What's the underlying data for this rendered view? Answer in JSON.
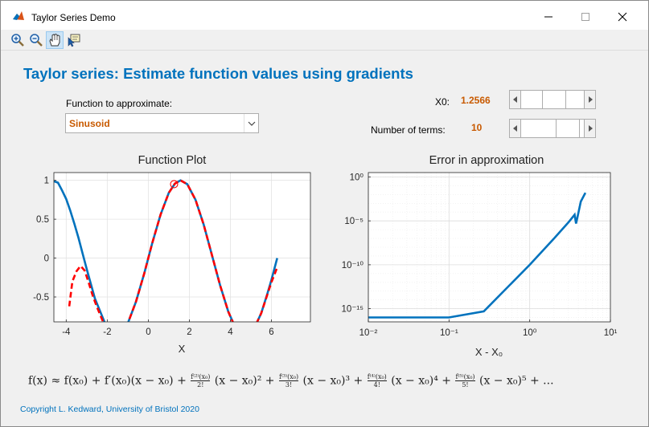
{
  "window": {
    "title": "Taylor Series Demo"
  },
  "toolbar": {
    "buttons": [
      {
        "name": "zoom-in-icon",
        "active": false
      },
      {
        "name": "zoom-out-icon",
        "active": false
      },
      {
        "name": "pan-hand-icon",
        "active": true
      },
      {
        "name": "data-cursor-icon",
        "active": false
      }
    ]
  },
  "main": {
    "title": "Taylor series: Estimate function values using gradients",
    "function_label": "Function to approximate:",
    "function_value": "Sinusoid",
    "x0_label": "X0:",
    "x0_value": "1.2566",
    "x0_slider_fraction": 0.55,
    "terms_label": "Number of terms:",
    "terms_value": "10",
    "terms_slider_fraction": 0.9,
    "copyright": "Copyright L. Kedward, University of Bristol 2020"
  },
  "formula": {
    "lhs": "f(x) ≈ f(x",
    "parts": [
      "f(x) ≈ f(x₀) + f′(x₀)(x − x₀) +",
      "(x − x₀)² +",
      "(x − x₀)³ +",
      "(x − x₀)⁴ +",
      "(x − x₀)⁵ + ..."
    ],
    "fractions": [
      {
        "num": "f⁽²⁾(x₀)",
        "den": "2!"
      },
      {
        "num": "f⁽³⁾(x₀)",
        "den": "3!"
      },
      {
        "num": "f⁽⁴⁾(x₀)",
        "den": "4!"
      },
      {
        "num": "f⁽⁵⁾(x₀)",
        "den": "5!"
      }
    ]
  },
  "colors": {
    "accent": "#0072bd",
    "value": "#c85a00",
    "series_function": "#0072bd",
    "series_approx": "#ff0000"
  },
  "chart_data": [
    {
      "type": "line",
      "title": "Function Plot",
      "xlabel": "X",
      "ylabel": "",
      "xlim": [
        -4.6,
        7.9
      ],
      "ylim": [
        -0.82,
        1.1
      ],
      "xticks": [
        "-4",
        "-2",
        "0",
        "2",
        "4",
        "6"
      ],
      "yticks": [
        "1",
        "0.5",
        "0",
        "-0.5"
      ],
      "xtick_values": [
        -4,
        -2,
        0,
        2,
        4,
        6
      ],
      "ytick_values": [
        1,
        0.5,
        0,
        -0.5
      ],
      "grid": true,
      "series": [
        {
          "style": "solid",
          "x": [
            -4.6,
            -4.4,
            -4.2,
            -4.0,
            -3.8,
            -3.6,
            -3.4,
            -3.2,
            -3.0,
            -2.8,
            -2.6,
            -2.0,
            -1.0,
            -0.6,
            -0.2,
            0.2,
            0.6,
            1.0,
            1.3,
            1.57,
            1.9,
            2.3,
            2.7,
            3.1,
            3.5,
            3.9,
            4.2,
            5.0,
            5.2,
            5.5,
            5.8,
            6.0,
            6.28
          ],
          "y": [
            0.99,
            0.97,
            0.87,
            0.76,
            0.61,
            0.44,
            0.26,
            0.06,
            -0.14,
            -0.33,
            -0.52,
            -0.91,
            -0.84,
            -0.56,
            -0.2,
            0.2,
            0.56,
            0.84,
            0.96,
            1.0,
            0.95,
            0.75,
            0.43,
            0.04,
            -0.35,
            -0.69,
            -0.87,
            -0.96,
            -0.88,
            -0.71,
            -0.46,
            -0.28,
            0.0
          ]
        },
        {
          "style": "dashed",
          "x": [
            -3.85,
            -3.7,
            -3.5,
            -3.3,
            -3.1,
            -2.9,
            -2.7,
            -2.5,
            -2.0,
            -1.0,
            -0.6,
            -0.2,
            0.2,
            0.6,
            1.0,
            1.3,
            1.57,
            1.9,
            2.3,
            2.7,
            3.1,
            3.5,
            3.9,
            4.2,
            5.0,
            5.2,
            5.5,
            5.8,
            6.0,
            6.28
          ],
          "y": [
            -0.62,
            -0.3,
            -0.17,
            -0.1,
            -0.16,
            -0.32,
            -0.49,
            -0.63,
            -0.95,
            -0.84,
            -0.56,
            -0.2,
            0.2,
            0.56,
            0.84,
            0.96,
            1.0,
            0.95,
            0.75,
            0.43,
            0.04,
            -0.35,
            -0.69,
            -0.87,
            -0.96,
            -0.88,
            -0.71,
            -0.47,
            -0.31,
            -0.12
          ]
        }
      ],
      "marker": {
        "x": 1.2566,
        "y": 0.951,
        "shape": "circle"
      }
    },
    {
      "type": "line",
      "title": "Error in approximation",
      "xlabel": "X - X₀",
      "ylabel": "",
      "xscale": "log",
      "yscale": "log",
      "xlim": [
        0.01,
        10
      ],
      "ylim_exp": [
        -16.5,
        0.5
      ],
      "xticks": [
        "10⁻²",
        "10⁻¹",
        "10⁰",
        "10¹"
      ],
      "yticks": [
        "10⁰",
        "10⁻⁵",
        "10⁻¹⁰",
        "10⁻¹⁵"
      ],
      "grid": true,
      "series": [
        {
          "style": "solid",
          "x": [
            0.01,
            0.1,
            0.27,
            1.0,
            2.0,
            3.0,
            3.6,
            3.75,
            3.9,
            4.3,
            4.9
          ],
          "y_exp": [
            -16.0,
            -16.0,
            -15.3,
            -10.0,
            -7.0,
            -5.2,
            -4.3,
            -5.3,
            -4.6,
            -2.8,
            -1.8
          ]
        }
      ]
    }
  ]
}
